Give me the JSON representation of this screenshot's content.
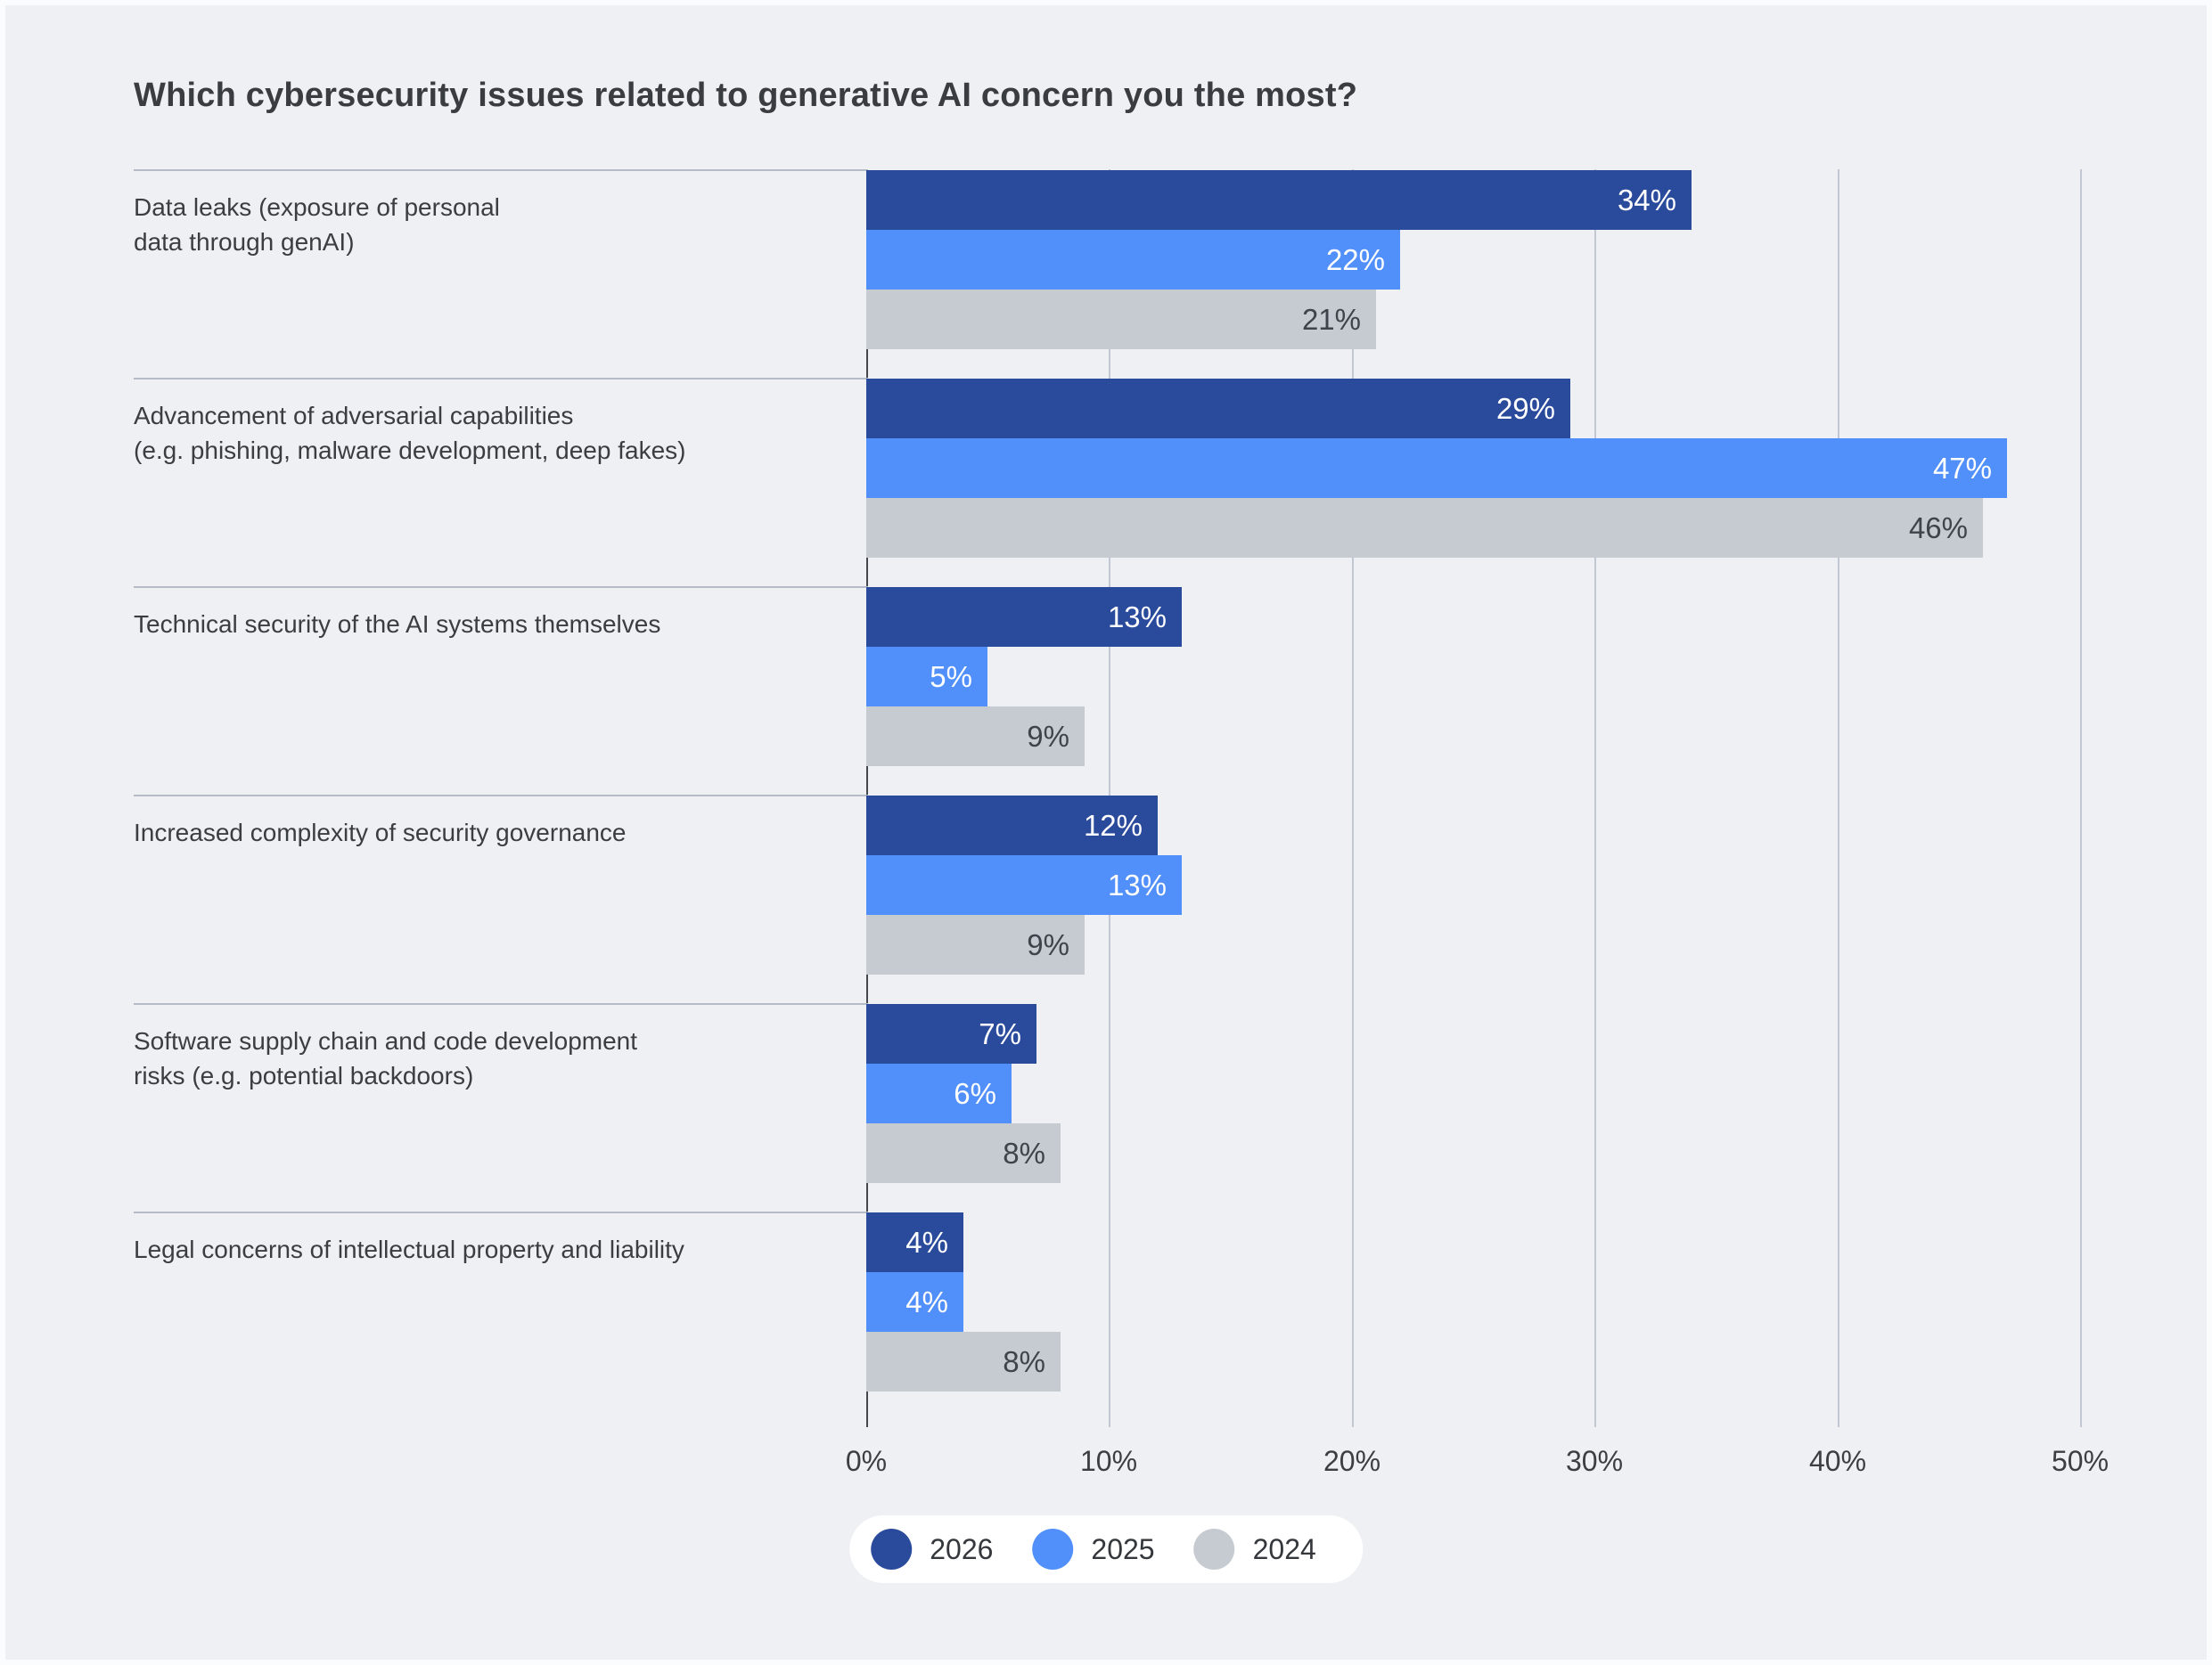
{
  "title": "Which cybersecurity issues related to generative AI concern you the most?",
  "colors": {
    "background": "#eef0f3",
    "series_2026": "#2a4b9c",
    "series_2025": "#5190fa",
    "series_2024": "#c6cbd2",
    "gridline": "#c2c8d3",
    "axis_line": "#45494f",
    "text_dark": "#3a3d42"
  },
  "chart_data": {
    "type": "bar",
    "orientation": "horizontal",
    "title": "Which cybersecurity issues related to generative AI concern you the most?",
    "categories": [
      "Data leaks (exposure of personal\ndata through genAI)",
      "Advancement of adversarial capabilities\n(e.g. phishing, malware development, deep fakes)",
      "Technical security of the AI systems themselves",
      "Increased complexity of security governance",
      "Software supply chain and code development\nrisks (e.g. potential backdoors)",
      "Legal concerns of intellectual property and liability"
    ],
    "series": [
      {
        "name": "2026",
        "color_key": "series_2026",
        "label_color": "#ffffff",
        "values": [
          34,
          29,
          13,
          12,
          7,
          4
        ]
      },
      {
        "name": "2025",
        "color_key": "series_2025",
        "label_color": "#ffffff",
        "values": [
          22,
          47,
          5,
          13,
          6,
          4
        ]
      },
      {
        "name": "2024",
        "color_key": "series_2024",
        "label_color": "#3f434a",
        "values": [
          21,
          46,
          9,
          9,
          8,
          8
        ]
      }
    ],
    "value_suffix": "%",
    "x_ticks": [
      "0%",
      "10%",
      "20%",
      "30%",
      "40%",
      "50%"
    ],
    "xlim": [
      0,
      50
    ],
    "grid": true,
    "legend_position": "bottom"
  }
}
